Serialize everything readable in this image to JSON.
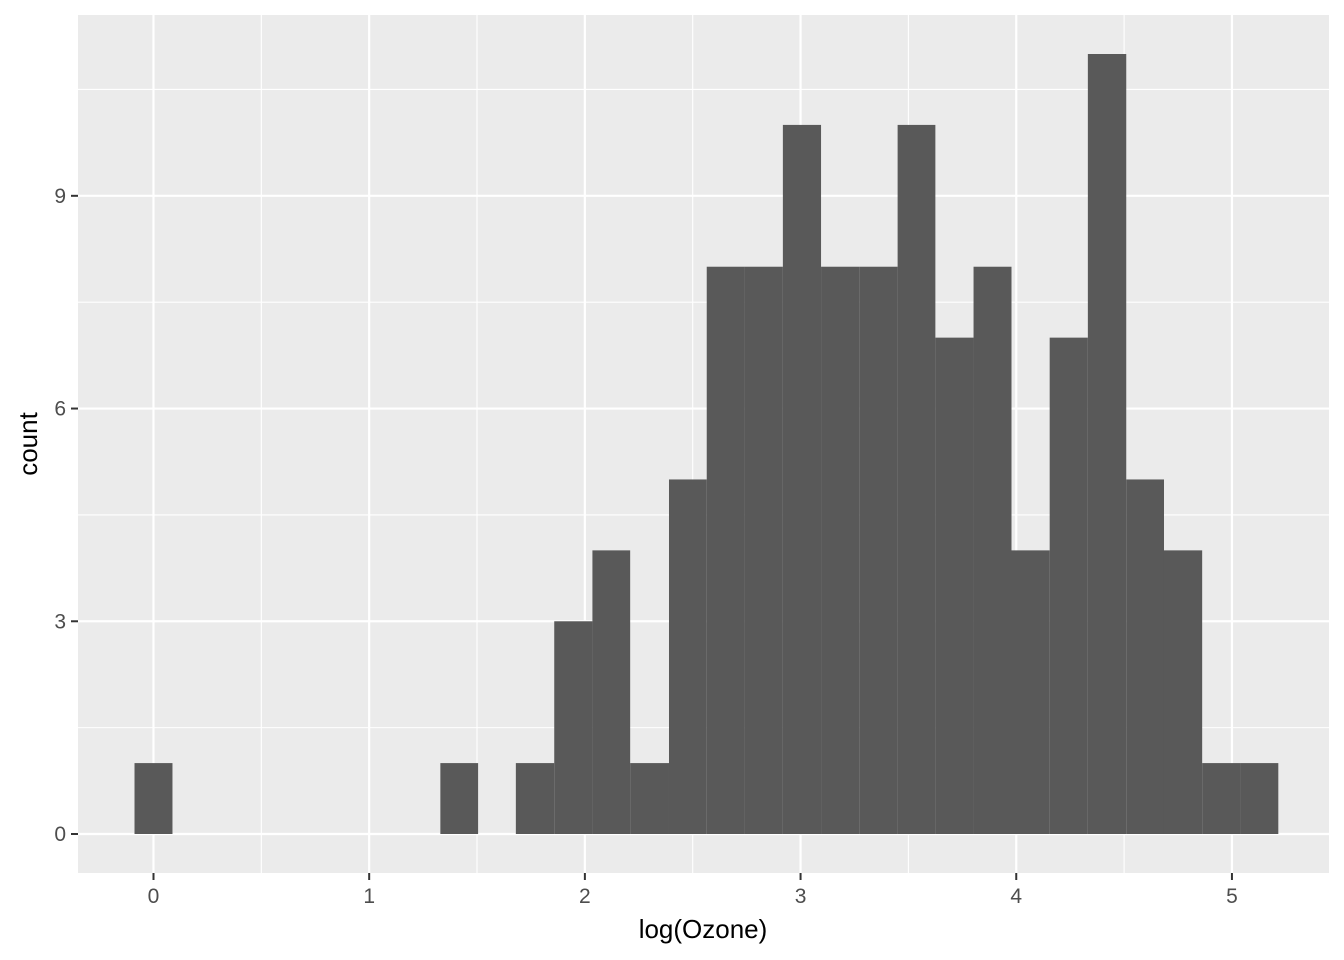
{
  "chart_data": {
    "type": "bar",
    "subtype": "histogram",
    "title": "",
    "xlabel": "log(Ozone)",
    "ylabel": "count",
    "xlim": [
      -0.35,
      5.45
    ],
    "ylim": [
      -0.55,
      11.55
    ],
    "x_ticks": [
      0,
      1,
      2,
      3,
      4,
      5
    ],
    "y_ticks": [
      0,
      3,
      6,
      9
    ],
    "x_tick_labels": [
      "0",
      "1",
      "2",
      "3",
      "4",
      "5"
    ],
    "y_tick_labels": [
      "0",
      "3",
      "6",
      "9"
    ],
    "grid": true,
    "colors": {
      "panel": "#ebebeb",
      "grid_major": "#ffffff",
      "bar": "#595959",
      "tick_label": "#4d4d4d",
      "tick_mark": "#333333"
    },
    "bins": [
      {
        "x0": -0.088,
        "x1": 0.088,
        "count": 1
      },
      {
        "x0": 1.33,
        "x1": 1.505,
        "count": 1
      },
      {
        "x0": 1.68,
        "x1": 1.858,
        "count": 1
      },
      {
        "x0": 1.858,
        "x1": 2.035,
        "count": 3
      },
      {
        "x0": 2.035,
        "x1": 2.21,
        "count": 4
      },
      {
        "x0": 2.21,
        "x1": 2.39,
        "count": 1
      },
      {
        "x0": 2.39,
        "x1": 2.565,
        "count": 5
      },
      {
        "x0": 2.565,
        "x1": 2.742,
        "count": 8
      },
      {
        "x0": 2.742,
        "x1": 2.918,
        "count": 8
      },
      {
        "x0": 2.918,
        "x1": 3.095,
        "count": 10
      },
      {
        "x0": 3.095,
        "x1": 3.272,
        "count": 8
      },
      {
        "x0": 3.272,
        "x1": 3.45,
        "count": 8
      },
      {
        "x0": 3.45,
        "x1": 3.625,
        "count": 10
      },
      {
        "x0": 3.625,
        "x1": 3.802,
        "count": 7
      },
      {
        "x0": 3.802,
        "x1": 3.978,
        "count": 8
      },
      {
        "x0": 3.978,
        "x1": 4.155,
        "count": 4
      },
      {
        "x0": 4.155,
        "x1": 4.332,
        "count": 7
      },
      {
        "x0": 4.332,
        "x1": 4.51,
        "count": 11
      },
      {
        "x0": 4.51,
        "x1": 4.685,
        "count": 5
      },
      {
        "x0": 4.685,
        "x1": 4.862,
        "count": 4
      },
      {
        "x0": 4.862,
        "x1": 5.04,
        "count": 1
      },
      {
        "x0": 5.04,
        "x1": 5.215,
        "count": 1
      }
    ]
  }
}
